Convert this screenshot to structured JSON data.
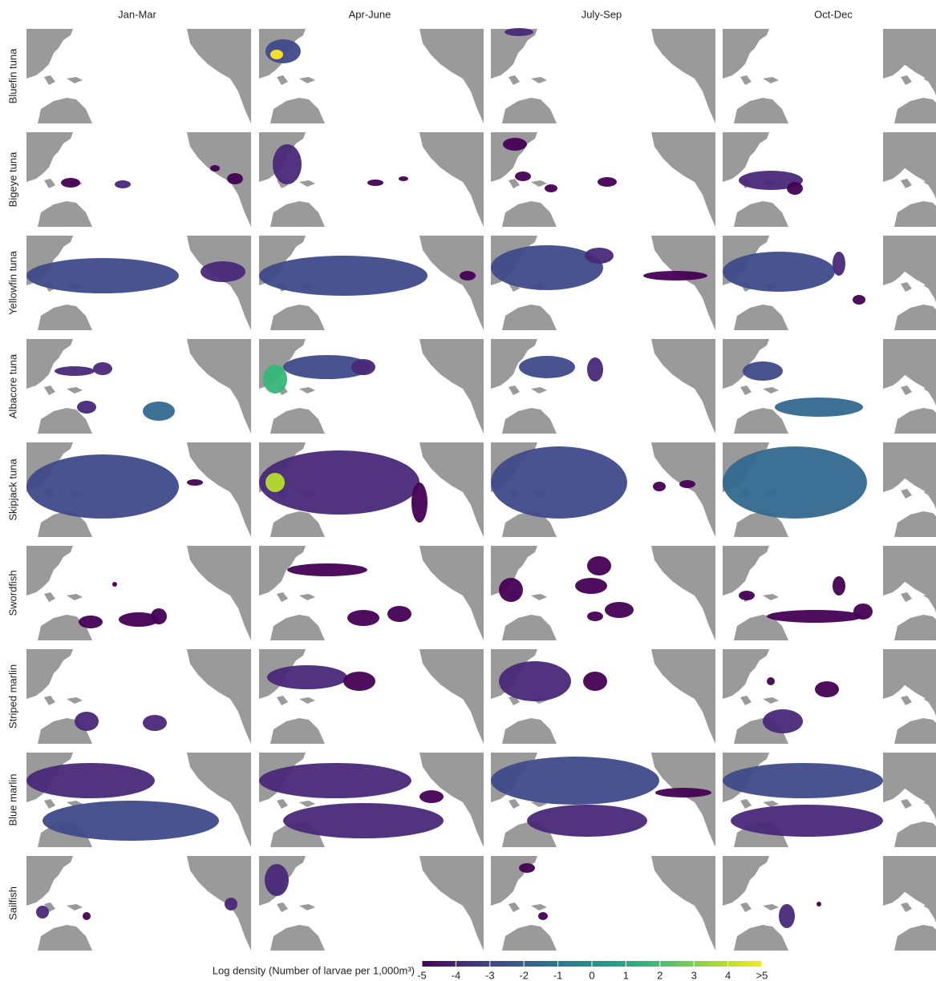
{
  "columns": [
    "Jan-Mar",
    "Apr-June",
    "July-Sep",
    "Oct-Dec"
  ],
  "rows": [
    "Bluefin tuna",
    "Bigeye tuna",
    "Yellowfin tuna",
    "Albacore tuna",
    "Skipjack tuna",
    "Swordfish",
    "Striped marlin",
    "Blue marlin",
    "Sailfish"
  ],
  "legend": {
    "label": "Log density (Number of larvae per 1,000m³)",
    "colormap": [
      "#440154",
      "#482878",
      "#3e4a89",
      "#31688e",
      "#26828e",
      "#1f9e89",
      "#35b779",
      "#6ece58",
      "#b5de2b",
      "#fde725"
    ],
    "lim": [
      -5,
      5
    ],
    "ticks": [
      -5,
      -4,
      -3,
      -2,
      -1,
      0,
      1,
      2,
      3,
      4,
      {
        "value": 5,
        "label": ">5"
      }
    ]
  }
}
